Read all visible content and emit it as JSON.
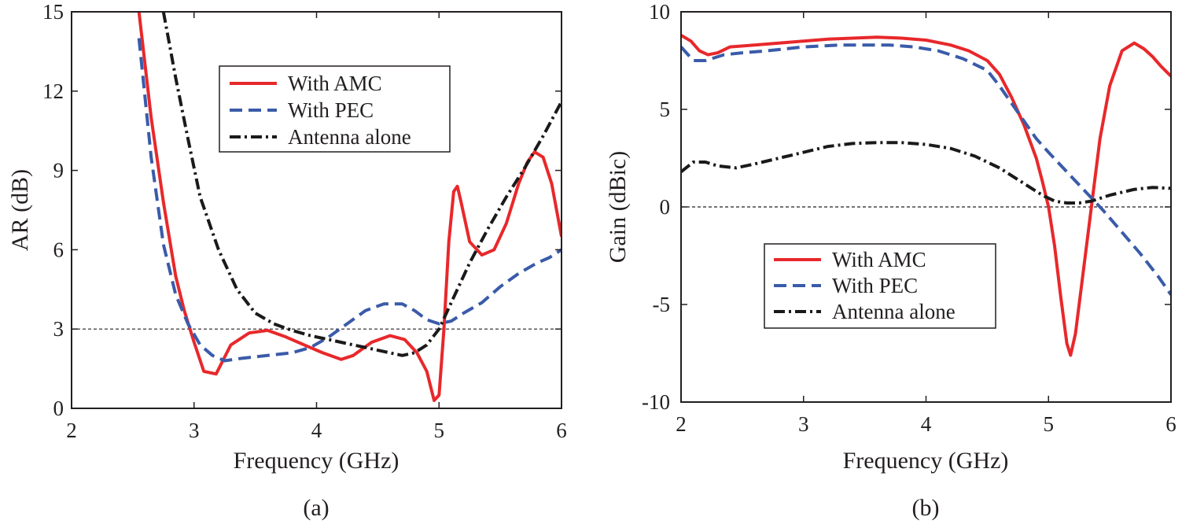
{
  "chart_data": [
    {
      "type": "line",
      "panel_label": "(a)",
      "title": "",
      "xlabel": "Frequency (GHz)",
      "ylabel": "AR (dB)",
      "xlim": [
        2,
        6
      ],
      "ylim": [
        0,
        15
      ],
      "xticks": [
        "2",
        "3",
        "4",
        "5",
        "6"
      ],
      "yticks": [
        "0",
        "3",
        "6",
        "9",
        "12",
        "15"
      ],
      "reference_line": {
        "y": 3,
        "style": "thin dashed black"
      },
      "legend": {
        "placement": "top-center"
      },
      "series": [
        {
          "name": "With AMC",
          "color": "#e8282b",
          "style": "solid",
          "x": [
            2.55,
            2.65,
            2.75,
            2.85,
            2.92,
            3.0,
            3.08,
            3.18,
            3.3,
            3.45,
            3.6,
            3.75,
            3.9,
            4.05,
            4.2,
            4.3,
            4.45,
            4.6,
            4.72,
            4.82,
            4.9,
            4.96,
            5.0,
            5.04,
            5.08,
            5.12,
            5.15,
            5.18,
            5.25,
            5.35,
            5.45,
            5.55,
            5.65,
            5.72,
            5.78,
            5.85,
            5.92,
            6.0
          ],
          "y": [
            15.0,
            11.0,
            7.8,
            5.0,
            3.7,
            2.5,
            1.4,
            1.3,
            2.4,
            2.85,
            2.95,
            2.7,
            2.4,
            2.1,
            1.85,
            2.0,
            2.5,
            2.75,
            2.6,
            2.1,
            1.4,
            0.3,
            0.5,
            3.0,
            6.3,
            8.2,
            8.4,
            7.8,
            6.3,
            5.8,
            6.0,
            7.0,
            8.5,
            9.3,
            9.7,
            9.5,
            8.5,
            6.5
          ]
        },
        {
          "name": "With PEC",
          "color": "#3a5ba9",
          "style": "dashed",
          "x": [
            2.55,
            2.65,
            2.75,
            2.85,
            2.95,
            3.05,
            3.15,
            3.25,
            3.4,
            3.6,
            3.8,
            3.95,
            4.1,
            4.25,
            4.4,
            4.55,
            4.7,
            4.8,
            4.9,
            5.0,
            5.1,
            5.2,
            5.35,
            5.5,
            5.65,
            5.8,
            5.9,
            6.0
          ],
          "y": [
            14.0,
            9.5,
            6.2,
            4.3,
            3.2,
            2.4,
            2.0,
            1.8,
            1.9,
            2.0,
            2.1,
            2.3,
            2.7,
            3.2,
            3.7,
            3.95,
            3.95,
            3.7,
            3.35,
            3.2,
            3.3,
            3.6,
            4.0,
            4.6,
            5.1,
            5.5,
            5.7,
            6.0
          ]
        },
        {
          "name": "Antenna alone",
          "color": "#1a1a1a",
          "style": "dash-dot",
          "x": [
            2.75,
            2.85,
            2.95,
            3.05,
            3.2,
            3.35,
            3.5,
            3.65,
            3.8,
            3.95,
            4.1,
            4.25,
            4.4,
            4.55,
            4.7,
            4.8,
            4.9,
            5.0,
            5.1,
            5.25,
            5.4,
            5.55,
            5.7,
            5.85,
            6.0
          ],
          "y": [
            15.0,
            12.5,
            10.2,
            8.0,
            6.0,
            4.5,
            3.6,
            3.2,
            2.95,
            2.75,
            2.6,
            2.45,
            2.3,
            2.15,
            2.0,
            2.1,
            2.4,
            3.0,
            4.0,
            5.5,
            6.8,
            8.0,
            9.1,
            10.3,
            11.6
          ]
        }
      ]
    },
    {
      "type": "line",
      "panel_label": "(b)",
      "title": "",
      "xlabel": "Frequency (GHz)",
      "ylabel": "Gain (dBic)",
      "xlim": [
        2,
        6
      ],
      "ylim": [
        -10,
        10
      ],
      "xticks": [
        "2",
        "3",
        "4",
        "5",
        "6"
      ],
      "yticks": [
        "-10",
        "-5",
        "0",
        "5",
        "10"
      ],
      "reference_line": {
        "y": 0,
        "style": "thin dashed black"
      },
      "legend": {
        "placement": "center-left"
      },
      "series": [
        {
          "name": "With AMC",
          "color": "#e8282b",
          "style": "solid",
          "x": [
            2.0,
            2.08,
            2.15,
            2.22,
            2.3,
            2.4,
            2.6,
            2.8,
            3.0,
            3.2,
            3.4,
            3.6,
            3.8,
            4.0,
            4.2,
            4.35,
            4.5,
            4.6,
            4.7,
            4.8,
            4.9,
            4.95,
            5.0,
            5.05,
            5.1,
            5.15,
            5.18,
            5.22,
            5.28,
            5.35,
            5.42,
            5.5,
            5.6,
            5.7,
            5.78,
            5.85,
            5.92,
            6.0
          ],
          "y": [
            8.8,
            8.5,
            8.0,
            7.8,
            7.9,
            8.2,
            8.3,
            8.4,
            8.5,
            8.6,
            8.65,
            8.7,
            8.65,
            8.55,
            8.3,
            8.0,
            7.5,
            6.8,
            5.6,
            4.2,
            2.5,
            1.3,
            0.0,
            -2.0,
            -4.6,
            -7.0,
            -7.6,
            -6.5,
            -3.5,
            0.0,
            3.5,
            6.2,
            8.0,
            8.4,
            8.1,
            7.7,
            7.2,
            6.7
          ]
        },
        {
          "name": "With PEC",
          "color": "#3a5ba9",
          "style": "dashed",
          "x": [
            2.0,
            2.1,
            2.2,
            2.35,
            2.5,
            2.7,
            3.0,
            3.3,
            3.5,
            3.7,
            3.9,
            4.1,
            4.3,
            4.5,
            4.6,
            4.7,
            4.8,
            4.9,
            5.0,
            5.15,
            5.3,
            5.45,
            5.6,
            5.75,
            5.9,
            6.0
          ],
          "y": [
            8.2,
            7.5,
            7.5,
            7.8,
            7.9,
            8.0,
            8.2,
            8.3,
            8.3,
            8.3,
            8.2,
            8.0,
            7.6,
            7.0,
            6.2,
            5.3,
            4.4,
            3.5,
            2.8,
            1.8,
            0.8,
            -0.2,
            -1.3,
            -2.4,
            -3.6,
            -4.5
          ]
        },
        {
          "name": "Antenna alone",
          "color": "#1a1a1a",
          "style": "dash-dot",
          "x": [
            2.0,
            2.1,
            2.2,
            2.3,
            2.45,
            2.6,
            2.8,
            3.0,
            3.2,
            3.4,
            3.6,
            3.8,
            4.0,
            4.2,
            4.4,
            4.6,
            4.8,
            4.95,
            5.05,
            5.15,
            5.25,
            5.35,
            5.5,
            5.7,
            5.85,
            6.0
          ],
          "y": [
            1.8,
            2.3,
            2.3,
            2.1,
            2.0,
            2.2,
            2.5,
            2.8,
            3.1,
            3.25,
            3.3,
            3.3,
            3.2,
            3.0,
            2.6,
            2.0,
            1.2,
            0.6,
            0.3,
            0.2,
            0.2,
            0.3,
            0.6,
            0.9,
            1.0,
            0.95
          ]
        }
      ]
    }
  ]
}
